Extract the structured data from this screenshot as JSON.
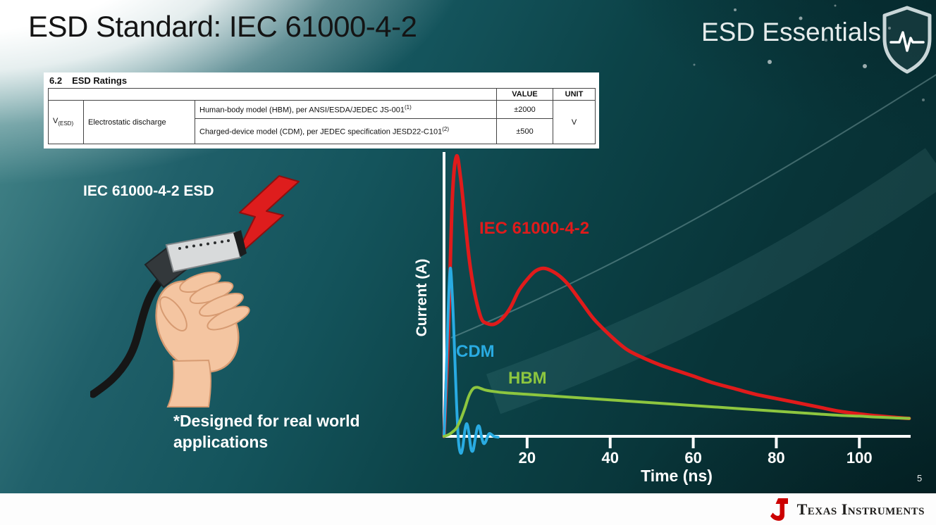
{
  "slide": {
    "title": "ESD Standard: IEC 61000-4-2",
    "brand": "ESD Essentials",
    "page_number": "5"
  },
  "ratings_table": {
    "section_number": "6.2",
    "section_title": "ESD Ratings",
    "col_value": "VALUE",
    "col_unit": "UNIT",
    "param_symbol": "V",
    "param_subscript": "(ESD)",
    "param_name": "Electrostatic discharge",
    "rows": [
      {
        "description": "Human-body model (HBM), per ANSI/ESDA/JEDEC JS-001",
        "reference": "(1)",
        "value": "±2000"
      },
      {
        "description": "Charged-device model (CDM), per JEDEC specification JESD22-C101",
        "reference": "(2)",
        "value": "±500"
      }
    ],
    "unit": "V"
  },
  "illustration": {
    "label": "IEC 61000-4-2 ESD",
    "note_line1": "*Designed for real world",
    "note_line2": "applications"
  },
  "footer": {
    "logo_text": "Texas Instruments"
  },
  "chart_data": {
    "type": "line",
    "title": "",
    "xlabel": "Time (ns)",
    "ylabel": "Current (A)",
    "xlim": [
      0,
      112
    ],
    "ylim": [
      -0.08,
      1.05
    ],
    "x_ticks": [
      20,
      40,
      60,
      80,
      100
    ],
    "grid": false,
    "legend_position": "inline-labels",
    "note": "y axis unlabeled; values normalized to IEC peak = 1.0",
    "series": [
      {
        "name": "IEC 61000-4-2",
        "color": "#e01b1b",
        "points": [
          [
            0,
            0
          ],
          [
            1,
            0.35
          ],
          [
            2,
            0.85
          ],
          [
            3,
            1.0
          ],
          [
            4,
            0.92
          ],
          [
            5,
            0.78
          ],
          [
            6,
            0.64
          ],
          [
            7,
            0.54
          ],
          [
            8,
            0.47
          ],
          [
            9,
            0.42
          ],
          [
            10,
            0.405
          ],
          [
            12,
            0.4
          ],
          [
            14,
            0.42
          ],
          [
            16,
            0.46
          ],
          [
            18,
            0.52
          ],
          [
            20,
            0.56
          ],
          [
            22,
            0.59
          ],
          [
            24,
            0.6
          ],
          [
            26,
            0.59
          ],
          [
            28,
            0.57
          ],
          [
            30,
            0.54
          ],
          [
            33,
            0.48
          ],
          [
            36,
            0.42
          ],
          [
            40,
            0.36
          ],
          [
            44,
            0.31
          ],
          [
            48,
            0.28
          ],
          [
            52,
            0.255
          ],
          [
            56,
            0.235
          ],
          [
            60,
            0.215
          ],
          [
            65,
            0.19
          ],
          [
            70,
            0.17
          ],
          [
            75,
            0.15
          ],
          [
            80,
            0.135
          ],
          [
            85,
            0.12
          ],
          [
            90,
            0.105
          ],
          [
            95,
            0.09
          ],
          [
            100,
            0.08
          ],
          [
            105,
            0.072
          ],
          [
            110,
            0.066
          ],
          [
            112,
            0.064
          ]
        ]
      },
      {
        "name": "CDM",
        "color": "#29abe2",
        "points": [
          [
            0,
            0
          ],
          [
            0.5,
            0.2
          ],
          [
            1,
            0.45
          ],
          [
            1.5,
            0.6
          ],
          [
            2,
            0.5
          ],
          [
            2.5,
            0.32
          ],
          [
            3,
            0.12
          ],
          [
            3.5,
            -0.02
          ],
          [
            4,
            -0.06
          ],
          [
            4.5,
            -0.04
          ],
          [
            5,
            0.02
          ],
          [
            5.5,
            0.045
          ],
          [
            6,
            0.01
          ],
          [
            6.5,
            -0.045
          ],
          [
            7,
            -0.05
          ],
          [
            7.5,
            -0.01
          ],
          [
            8,
            0.03
          ],
          [
            8.5,
            0.035
          ],
          [
            9,
            0
          ],
          [
            9.5,
            -0.025
          ],
          [
            10,
            -0.02
          ],
          [
            10.5,
            0
          ],
          [
            11,
            0.01
          ],
          [
            12,
            0
          ],
          [
            13,
            -0.003
          ]
        ]
      },
      {
        "name": "HBM",
        "color": "#8dc63f",
        "points": [
          [
            0,
            0
          ],
          [
            1,
            0.005
          ],
          [
            2,
            0.015
          ],
          [
            3,
            0.03
          ],
          [
            4,
            0.06
          ],
          [
            5,
            0.1
          ],
          [
            6,
            0.145
          ],
          [
            7,
            0.17
          ],
          [
            8,
            0.175
          ],
          [
            9,
            0.17
          ],
          [
            10,
            0.165
          ],
          [
            12,
            0.16
          ],
          [
            15,
            0.155
          ],
          [
            20,
            0.15
          ],
          [
            25,
            0.145
          ],
          [
            30,
            0.14
          ],
          [
            35,
            0.135
          ],
          [
            40,
            0.13
          ],
          [
            45,
            0.125
          ],
          [
            50,
            0.12
          ],
          [
            55,
            0.115
          ],
          [
            60,
            0.11
          ],
          [
            65,
            0.105
          ],
          [
            70,
            0.1
          ],
          [
            75,
            0.095
          ],
          [
            80,
            0.09
          ],
          [
            85,
            0.085
          ],
          [
            90,
            0.08
          ],
          [
            95,
            0.075
          ],
          [
            100,
            0.072
          ],
          [
            105,
            0.068
          ],
          [
            110,
            0.065
          ],
          [
            112,
            0.064
          ]
        ]
      }
    ]
  }
}
